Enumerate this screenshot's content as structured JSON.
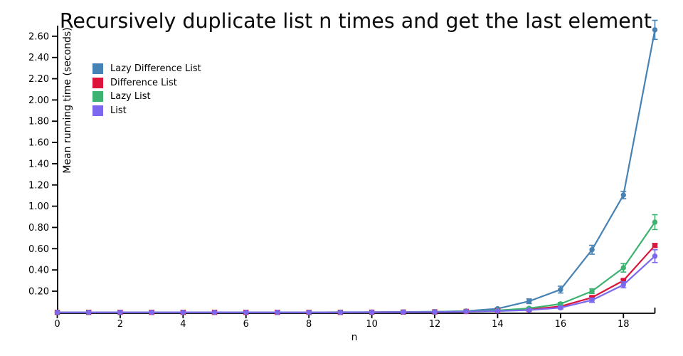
{
  "title": "Recursively duplicate list n times and get the last element",
  "colors": {
    "background": "#ffffff",
    "axis": "#000000",
    "text": "#000000"
  },
  "chart_data": {
    "type": "line",
    "title": "Recursively duplicate list n times and get the last element",
    "xlabel": "n",
    "ylabel": "Mean running time (seconds)",
    "xlim": [
      0,
      19
    ],
    "ylim": [
      0,
      2.72
    ],
    "grid": false,
    "legend_position": "upper-left-inside",
    "x_ticks": [
      0,
      2,
      4,
      6,
      8,
      10,
      12,
      14,
      16,
      18
    ],
    "y_ticks": [
      0.2,
      0.4,
      0.6,
      0.8,
      1.0,
      1.2,
      1.4,
      1.6,
      1.8,
      2.0,
      2.2,
      2.4,
      2.6
    ],
    "x": [
      0,
      1,
      2,
      3,
      4,
      5,
      6,
      7,
      8,
      9,
      10,
      11,
      12,
      13,
      14,
      15,
      16,
      17,
      18,
      19
    ],
    "series": [
      {
        "name": "Lazy Difference List",
        "color": "#4682B4",
        "marker": "circle",
        "values": [
          0.001,
          0.001,
          0.001,
          0.001,
          0.001,
          0.001,
          0.001,
          0.001,
          0.001,
          0.002,
          0.002,
          0.004,
          0.007,
          0.013,
          0.035,
          0.105,
          0.215,
          0.59,
          1.105,
          2.66
        ],
        "errors": [
          0,
          0,
          0,
          0,
          0,
          0,
          0,
          0,
          0,
          0,
          0,
          0,
          0,
          0.003,
          0.008,
          0.022,
          0.032,
          0.042,
          0.035,
          0.09
        ]
      },
      {
        "name": "Difference List",
        "color": "#DC143C",
        "marker": "square",
        "values": [
          0.001,
          0.001,
          0.001,
          0.001,
          0.001,
          0.001,
          0.001,
          0.001,
          0.001,
          0.001,
          0.002,
          0.003,
          0.005,
          0.009,
          0.016,
          0.028,
          0.057,
          0.14,
          0.3,
          0.63
        ],
        "errors": [
          0,
          0,
          0,
          0,
          0,
          0,
          0,
          0,
          0,
          0,
          0,
          0,
          0,
          0,
          0.002,
          0.003,
          0.006,
          0.01,
          0.012,
          0.018
        ]
      },
      {
        "name": "Lazy List",
        "color": "#3CB371",
        "marker": "circle",
        "values": [
          0.001,
          0.001,
          0.001,
          0.001,
          0.001,
          0.001,
          0.001,
          0.001,
          0.001,
          0.002,
          0.002,
          0.004,
          0.006,
          0.011,
          0.019,
          0.038,
          0.08,
          0.2,
          0.42,
          0.85
        ],
        "errors": [
          0,
          0,
          0,
          0,
          0,
          0,
          0,
          0,
          0,
          0,
          0,
          0,
          0,
          0.002,
          0.004,
          0.008,
          0.014,
          0.022,
          0.04,
          0.07
        ]
      },
      {
        "name": "List",
        "color": "#7B68EE",
        "marker": "circle",
        "values": [
          0.001,
          0.001,
          0.001,
          0.001,
          0.001,
          0.001,
          0.001,
          0.001,
          0.001,
          0.001,
          0.002,
          0.003,
          0.004,
          0.008,
          0.013,
          0.022,
          0.044,
          0.115,
          0.26,
          0.53
        ],
        "errors": [
          0,
          0,
          0,
          0,
          0,
          0,
          0,
          0,
          0,
          0,
          0,
          0,
          0,
          0,
          0.003,
          0.006,
          0.012,
          0.02,
          0.028,
          0.06
        ]
      }
    ]
  }
}
